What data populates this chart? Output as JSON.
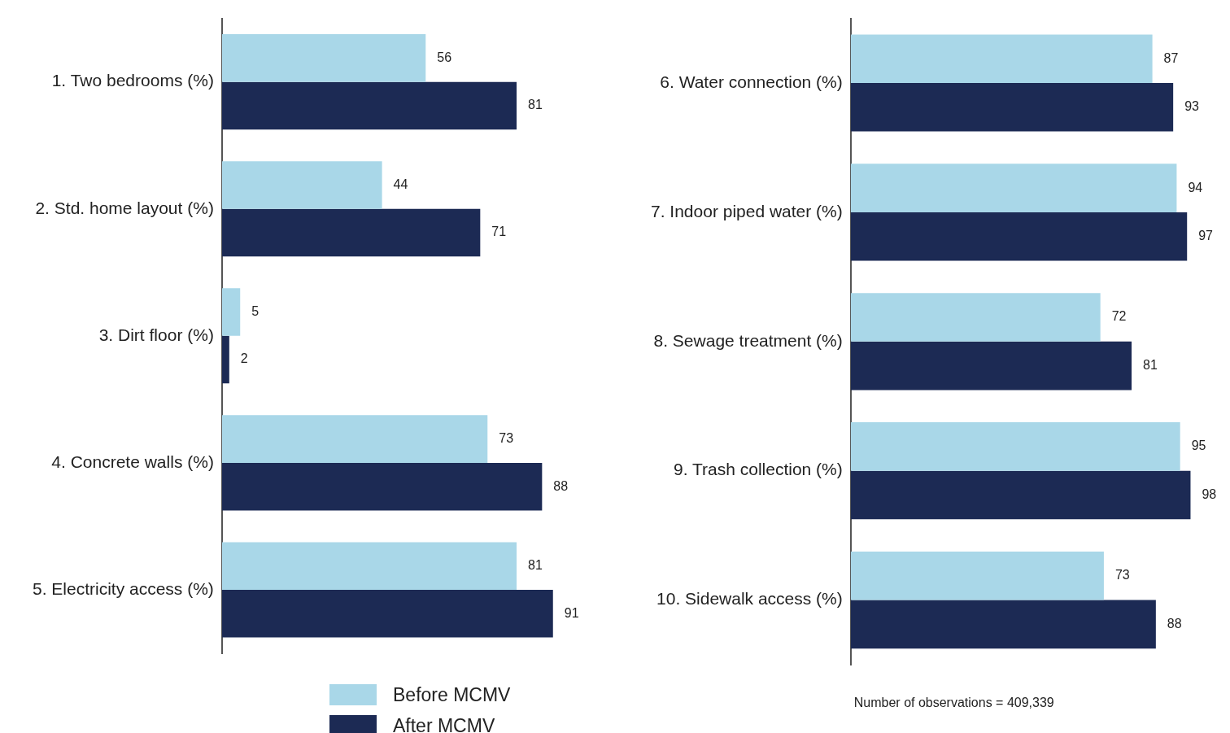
{
  "chart_data": [
    {
      "type": "bar",
      "orientation": "horizontal",
      "categories": [
        "1. Two bedrooms (%)",
        "2. Std. home layout (%)",
        "3. Dirt floor (%)",
        "4. Concrete walls (%)",
        "5. Electricity access (%)"
      ],
      "series": [
        {
          "name": "Before MCMV",
          "color": "#a9d7e8",
          "values": [
            56,
            44,
            5,
            73,
            81
          ]
        },
        {
          "name": "After MCMV",
          "color": "#1c2a54",
          "values": [
            81,
            71,
            2,
            88,
            91
          ]
        }
      ],
      "data_labels": true,
      "grid": false,
      "tick_labels": "y",
      "legend": "bottom"
    },
    {
      "type": "bar",
      "orientation": "horizontal",
      "categories": [
        "6. Water connection (%)",
        "7. Indoor piped water (%)",
        "8. Sewage treatment (%)",
        "9. Trash collection (%)",
        "10. Sidewalk access (%)"
      ],
      "series": [
        {
          "color": "#a9d7e8",
          "values": [
            87,
            94,
            72,
            95,
            73
          ]
        },
        {
          "color": "#1c2a54",
          "values": [
            93,
            97,
            81,
            98,
            88
          ]
        }
      ],
      "data_labels": true,
      "grid": false,
      "tick_labels": "y",
      "legend": false,
      "annotations": [
        "Number of observations = 409,339"
      ]
    }
  ]
}
